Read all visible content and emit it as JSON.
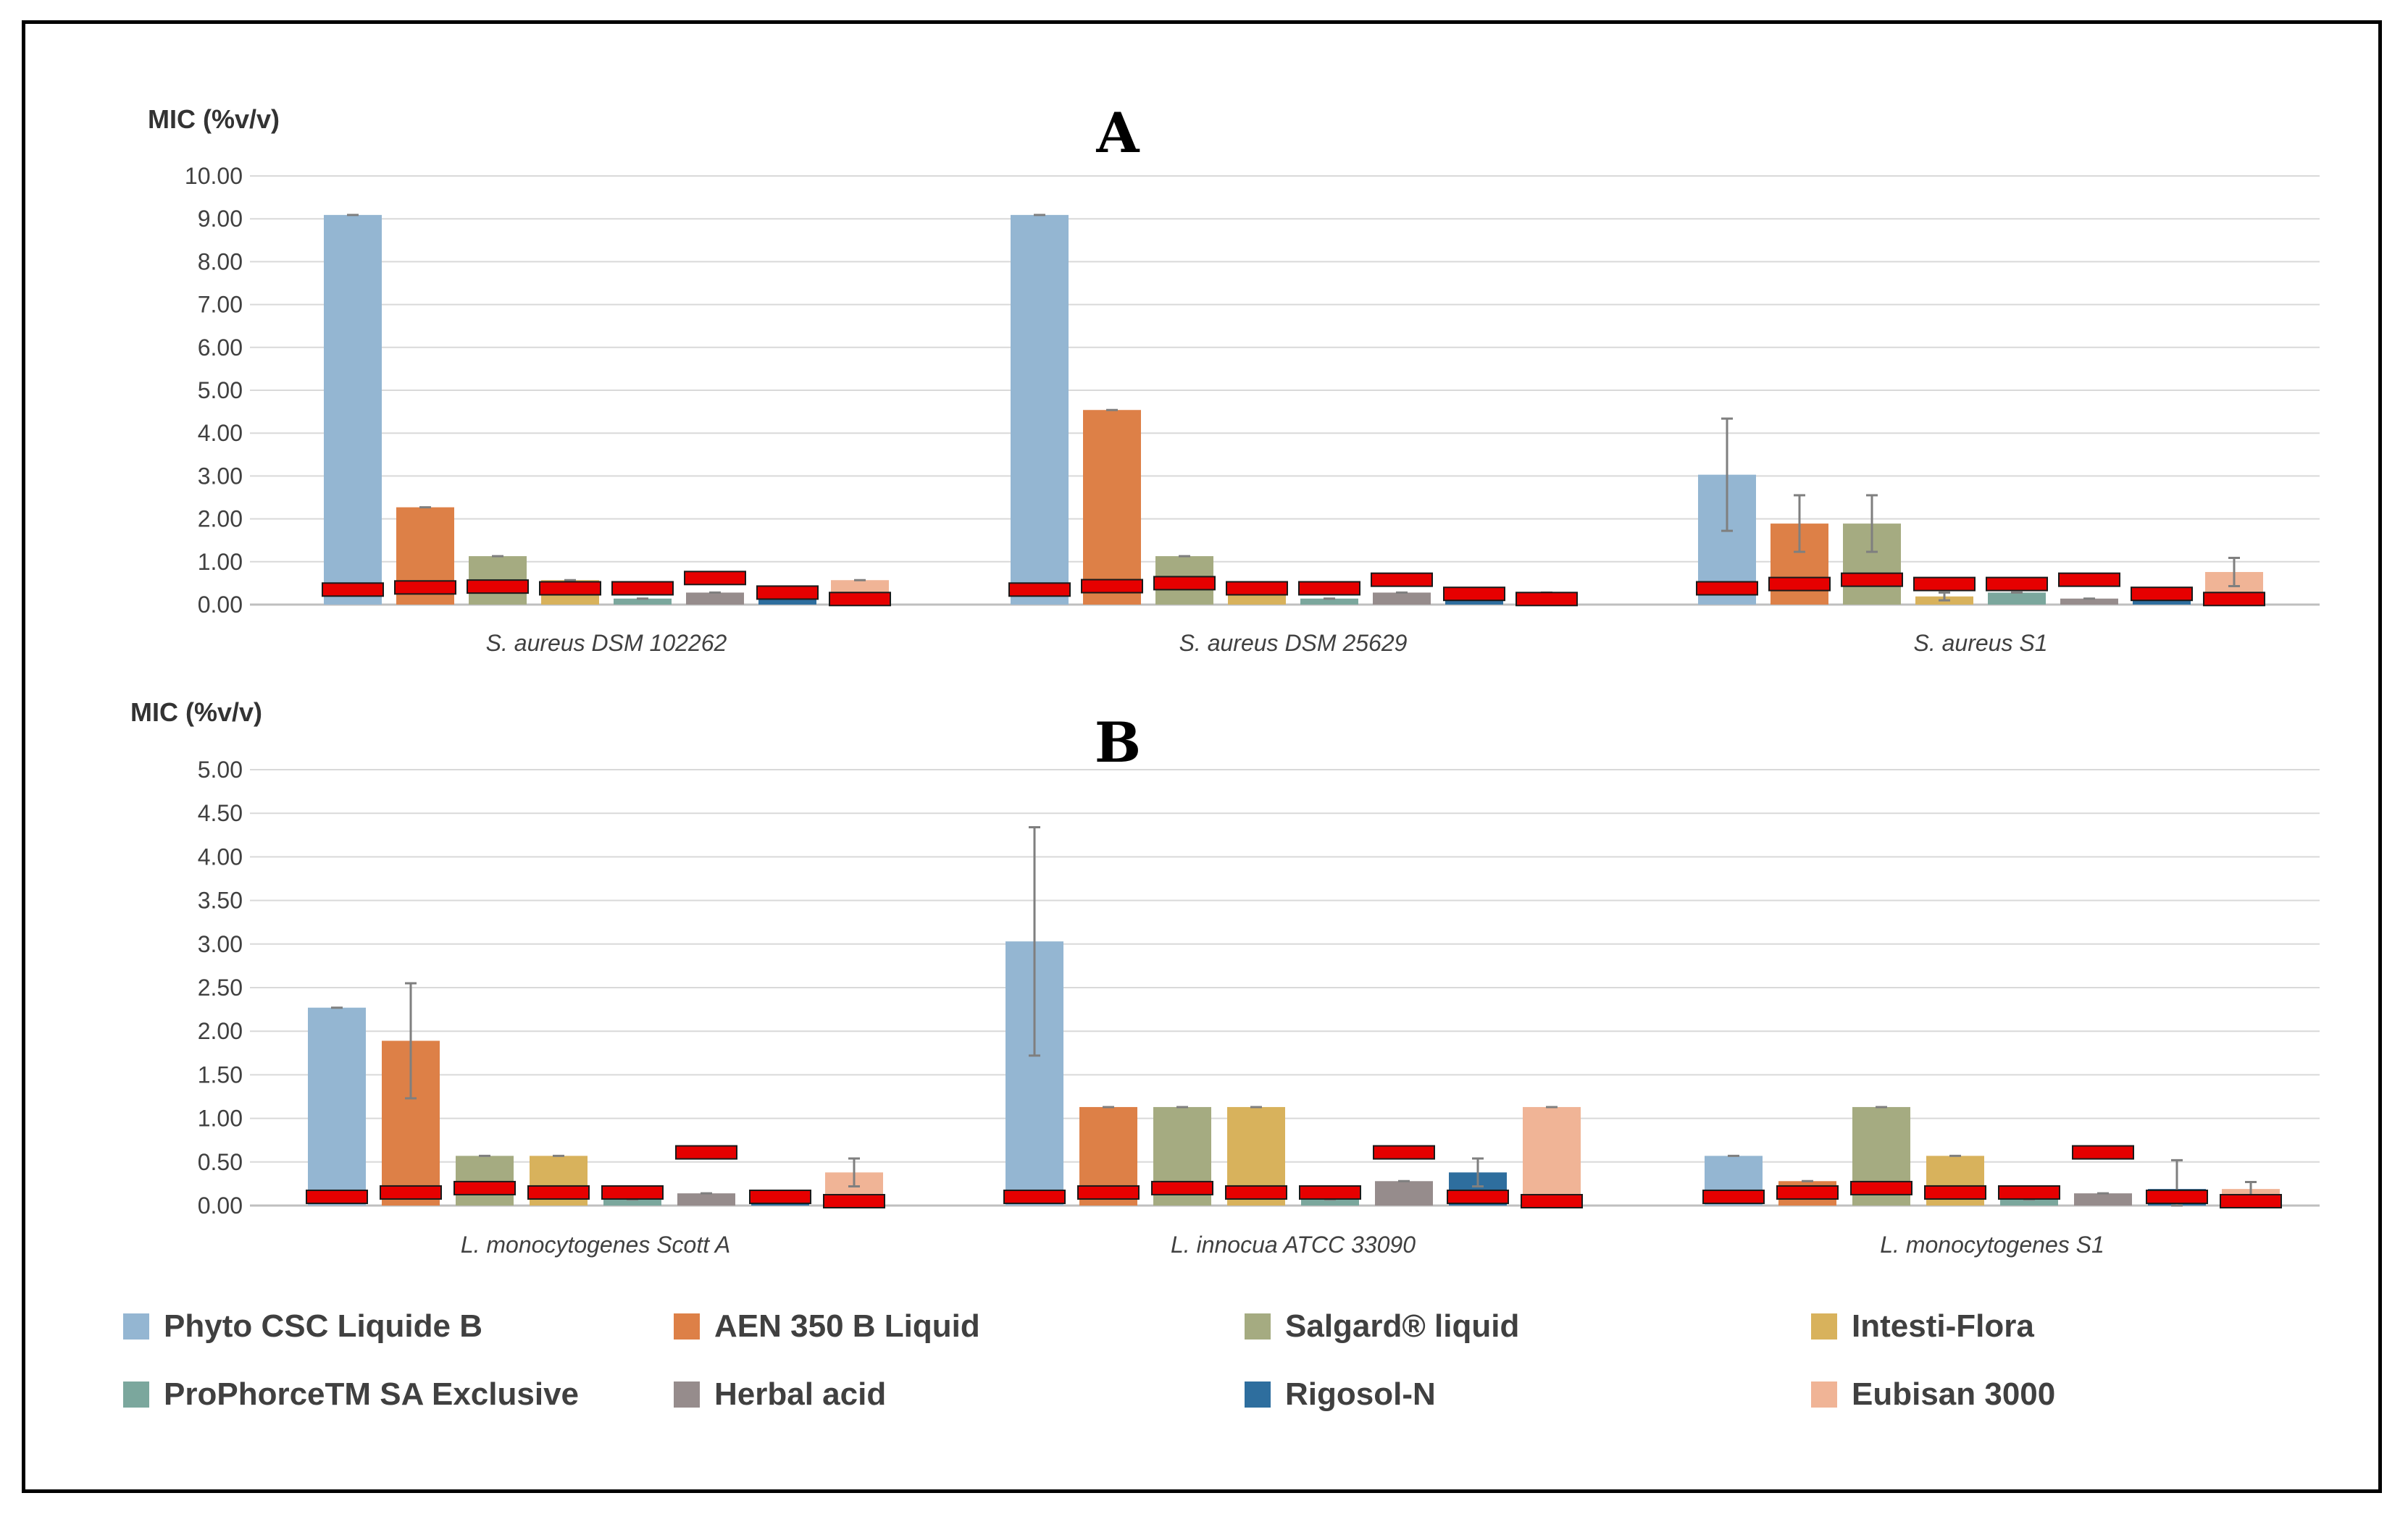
{
  "chart_data": [
    {
      "type": "bar",
      "title": "A",
      "ylabel": "MIC (%v/v)",
      "xlabel": "",
      "ylim": [
        0,
        10
      ],
      "yticks": [
        "0.00",
        "1.00",
        "2.00",
        "3.00",
        "4.00",
        "5.00",
        "6.00",
        "7.00",
        "8.00",
        "9.00",
        "10.00"
      ],
      "categories": [
        "S. aureus DSM 102262",
        "S. aureus DSM 25629",
        "S. aureus S1"
      ],
      "series": [
        {
          "name": "Phyto CSC Liquide B",
          "values": [
            9.09,
            9.09,
            3.03
          ],
          "errors": [
            0.0,
            0.0,
            1.31
          ],
          "red_marker": [
            0.35,
            0.35,
            0.38
          ]
        },
        {
          "name": "AEN 350 B Liquid",
          "values": [
            2.27,
            4.54,
            1.89
          ],
          "errors": [
            0.0,
            0.0,
            0.66
          ],
          "red_marker": [
            0.4,
            0.43,
            0.48
          ]
        },
        {
          "name": "Salgard® liquid",
          "values": [
            1.13,
            1.13,
            1.89
          ],
          "errors": [
            0.0,
            0.0,
            0.66
          ],
          "red_marker": [
            0.42,
            0.5,
            0.58
          ]
        },
        {
          "name": "Intesti-Flora",
          "values": [
            0.57,
            0.28,
            0.19
          ],
          "errors": [
            0.0,
            0.0,
            0.09
          ],
          "red_marker": [
            0.38,
            0.38,
            0.48
          ]
        },
        {
          "name": "ProPhorceTM SA Exclusive",
          "values": [
            0.14,
            0.14,
            0.28
          ],
          "errors": [
            0.0,
            0.0,
            0.0
          ],
          "red_marker": [
            0.38,
            0.38,
            0.48
          ]
        },
        {
          "name": "Herbal acid",
          "values": [
            0.28,
            0.28,
            0.14
          ],
          "errors": [
            0.0,
            0.0,
            0.0
          ],
          "red_marker": [
            0.62,
            0.58,
            0.58
          ]
        },
        {
          "name": "Rigosol-N",
          "values": [
            0.14,
            0.14,
            0.14
          ],
          "errors": [
            0.0,
            0.0,
            0.0
          ],
          "red_marker": [
            0.28,
            0.25,
            0.25
          ]
        },
        {
          "name": "Eubisan 3000",
          "values": [
            0.57,
            0.28,
            0.76
          ],
          "errors": [
            0.0,
            0.0,
            0.33
          ],
          "red_marker": [
            0.13,
            0.13,
            0.13
          ]
        }
      ]
    },
    {
      "type": "bar",
      "title": "B",
      "ylabel": "MIC (%v/v)",
      "xlabel": "",
      "ylim": [
        0,
        5
      ],
      "yticks": [
        "0.00",
        "0.50",
        "1.00",
        "1.50",
        "2.00",
        "2.50",
        "3.00",
        "3.50",
        "4.00",
        "4.50",
        "5.00"
      ],
      "categories": [
        "L. monocytogenes Scott A",
        "L. innocua ATCC 33090",
        "L. monocytogenes S1"
      ],
      "series": [
        {
          "name": "Phyto CSC Liquide B",
          "values": [
            2.27,
            3.03,
            0.57
          ],
          "errors": [
            0.0,
            1.31,
            0.0
          ],
          "red_marker": [
            0.1,
            0.1,
            0.1
          ]
        },
        {
          "name": "AEN 350 B Liquid",
          "values": [
            1.89,
            1.13,
            0.28
          ],
          "errors": [
            0.66,
            0.0,
            0.0
          ],
          "red_marker": [
            0.15,
            0.15,
            0.15
          ]
        },
        {
          "name": "Salgard® liquid",
          "values": [
            0.57,
            1.13,
            1.13
          ],
          "errors": [
            0.0,
            0.0,
            0.0
          ],
          "red_marker": [
            0.2,
            0.2,
            0.2
          ]
        },
        {
          "name": "Intesti-Flora",
          "values": [
            0.57,
            1.13,
            0.57
          ],
          "errors": [
            0.0,
            0.0,
            0.0
          ],
          "red_marker": [
            0.15,
            0.15,
            0.15
          ]
        },
        {
          "name": "ProPhorceTM SA Exclusive",
          "values": [
            0.07,
            0.07,
            0.07
          ],
          "errors": [
            0.0,
            0.0,
            0.0
          ],
          "red_marker": [
            0.15,
            0.15,
            0.15
          ]
        },
        {
          "name": "Herbal acid",
          "values": [
            0.14,
            0.28,
            0.14
          ],
          "errors": [
            0.0,
            0.0,
            0.0
          ],
          "red_marker": [
            0.61,
            0.61,
            0.61
          ]
        },
        {
          "name": "Rigosol-N",
          "values": [
            0.07,
            0.38,
            0.19
          ],
          "errors": [
            0.0,
            0.16,
            0.33
          ],
          "red_marker": [
            0.1,
            0.1,
            0.1
          ]
        },
        {
          "name": "Eubisan 3000",
          "values": [
            0.38,
            1.13,
            0.19
          ],
          "errors": [
            0.16,
            0.0,
            0.08
          ],
          "red_marker": [
            0.05,
            0.05,
            0.05
          ]
        }
      ]
    }
  ],
  "legend": [
    {
      "label": "Phyto CSC Liquide B",
      "color": "#94b6d2"
    },
    {
      "label": "AEN 350 B Liquid",
      "color": "#dd8047"
    },
    {
      "label": "Salgard® liquid",
      "color": "#a5ab81"
    },
    {
      "label": "Intesti-Flora",
      "color": "#d8b25c"
    },
    {
      "label": "ProPhorceTM SA Exclusive",
      "color": "#7ba79d"
    },
    {
      "label": "Herbal acid",
      "color": "#968c8c"
    },
    {
      "label": "Rigosol-N",
      "color": "#2e6e9e"
    },
    {
      "label": "Eubisan 3000",
      "color": "#f0b496"
    }
  ],
  "marker_color": "#e60000"
}
